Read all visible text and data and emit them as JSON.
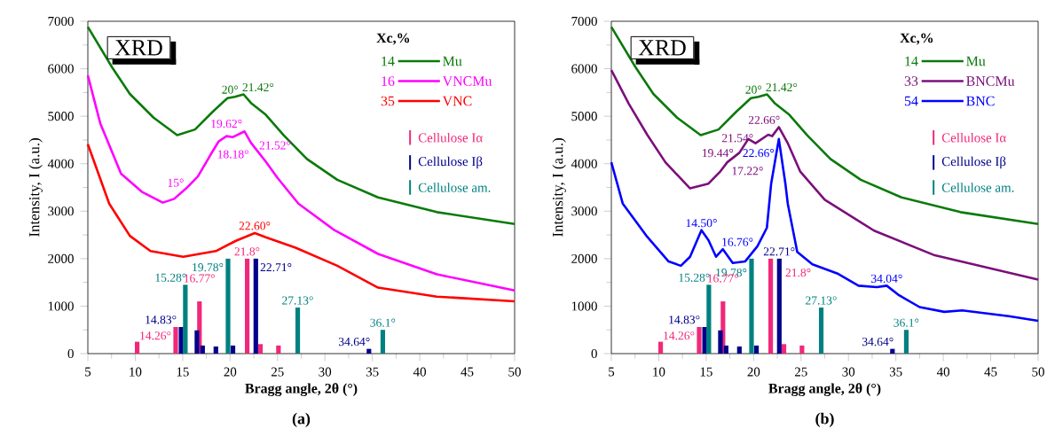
{
  "chart_data": [
    {
      "type": "line",
      "title": "XRD",
      "subtitle": "(a)",
      "xlabel": "Bragg angle, 2θ (°)",
      "ylabel": "Intensity, I (a.u.)",
      "legend_title": "Xc,%",
      "legend": "top right",
      "marker": "none",
      "line_style": "solid",
      "xlim": [
        5,
        50
      ],
      "ylim": [
        0,
        7000
      ],
      "xticks": [
        5,
        10,
        15,
        20,
        25,
        30,
        35,
        40,
        45,
        50
      ],
      "yticks": [
        0,
        1000,
        2000,
        3000,
        4000,
        5000,
        6000,
        7000
      ],
      "series": [
        {
          "name": "Mu",
          "color": "#0a7a0a",
          "x": [
            5,
            7.56,
            9.43,
            11.93,
            14.42,
            16.3,
            18.2,
            19.72,
            20.5,
            21.42,
            22.2,
            23.77,
            25.65,
            28.1,
            31.3,
            35.6,
            41.8,
            50
          ],
          "values": [
            6880,
            6030,
            5470,
            4970,
            4600,
            4720,
            5100,
            5380,
            5410,
            5460,
            5280,
            5030,
            4600,
            4100,
            3660,
            3290,
            2980,
            2730
          ]
        },
        {
          "name": "VNCMu",
          "color": "#ff00ff",
          "x": [
            5,
            6.31,
            8.5,
            10.68,
            12.9,
            14.1,
            15.37,
            16.6,
            17.86,
            18.18,
            18.8,
            19.62,
            20.3,
            21.52,
            22.2,
            23.77,
            25.0,
            27.2,
            31.0,
            35.6,
            41.8,
            50
          ],
          "values": [
            5860,
            4850,
            3790,
            3410,
            3180,
            3260,
            3480,
            3730,
            4160,
            4270,
            4470,
            4580,
            4560,
            4680,
            4440,
            4040,
            3700,
            3160,
            2600,
            2100,
            1670,
            1330
          ]
        },
        {
          "name": "VNC",
          "color": "#ff0000",
          "x": [
            5,
            7.25,
            9.43,
            11.6,
            15.05,
            18.5,
            20.66,
            22.6,
            23.77,
            26.9,
            31.3,
            35.6,
            41.8,
            50
          ],
          "values": [
            4410,
            3160,
            2480,
            2160,
            2040,
            2160,
            2380,
            2540,
            2450,
            2230,
            1850,
            1390,
            1200,
            1100
          ]
        },
        {
          "name": "Cellulose Iα",
          "type": "bar",
          "color": "#f0287a",
          "x": [
            10.2,
            14.26,
            16.77,
            21.8,
            23.2,
            25.1
          ],
          "values": [
            250,
            560,
            1100,
            2000,
            200,
            170
          ]
        },
        {
          "name": "Cellulose Iβ",
          "type": "bar",
          "color": "#00008b",
          "x": [
            14.83,
            16.5,
            17.1,
            18.5,
            20.3,
            22.71,
            34.64
          ],
          "values": [
            560,
            490,
            170,
            150,
            170,
            2000,
            100
          ]
        },
        {
          "name": "Cellulose am.",
          "type": "bar",
          "color": "#008080",
          "x": [
            15.28,
            19.78,
            27.13,
            36.1
          ],
          "values": [
            1450,
            2000,
            970,
            500
          ]
        }
      ],
      "annotations": [
        "14",
        "16",
        "35",
        {
          "text": "20°",
          "x": 20,
          "y": 5410
        },
        {
          "text": "21.42°",
          "x": 21.42,
          "y": 5460
        },
        {
          "text": "19.62°",
          "x": 19.62,
          "y": 4580
        },
        {
          "text": "21.52°",
          "x": 21.52,
          "y": 4680
        },
        {
          "text": "18.18°",
          "x": 18.18,
          "y": 4270
        },
        {
          "text": "15°",
          "x": 15,
          "y": 3450
        },
        {
          "text": "22.60°",
          "x": 22.6,
          "y": 2540
        },
        {
          "text": "19.78°",
          "x": 19.78,
          "y": 2000
        },
        {
          "text": "21.8°",
          "x": 21.8,
          "y": 2000
        },
        {
          "text": "22.71°",
          "x": 22.71,
          "y": 2000
        },
        {
          "text": "15.28°",
          "x": 15.28,
          "y": 1450
        },
        {
          "text": "16.77°",
          "x": 16.77,
          "y": 1100
        },
        {
          "text": "14.83°",
          "x": 14.83,
          "y": 560
        },
        {
          "text": "14.26°",
          "x": 14.26,
          "y": 560
        },
        {
          "text": "27.13°",
          "x": 27.13,
          "y": 970
        },
        {
          "text": "34.64°",
          "x": 34.64,
          "y": 100
        },
        {
          "text": "36.1°",
          "x": 36.1,
          "y": 500
        }
      ]
    },
    {
      "type": "line",
      "title": "XRD",
      "subtitle": "(b)",
      "xlabel": "Bragg angle, 2θ (°)",
      "ylabel": "Intensity, I (a.u.)",
      "legend_title": "Xc,%",
      "legend": "top right",
      "marker": "none",
      "line_style": "solid",
      "xlim": [
        5,
        50
      ],
      "ylim": [
        0,
        7000
      ],
      "xticks": [
        5,
        10,
        15,
        20,
        25,
        30,
        35,
        40,
        45,
        50
      ],
      "yticks": [
        0,
        1000,
        2000,
        3000,
        4000,
        5000,
        6000,
        7000
      ],
      "series": [
        {
          "name": "Mu",
          "color": "#0a7a0a",
          "x": [
            5,
            7.56,
            9.43,
            11.93,
            14.42,
            16.3,
            18.2,
            19.72,
            20.5,
            21.42,
            22.2,
            23.77,
            25.65,
            28.1,
            31.3,
            35.6,
            41.8,
            50
          ],
          "values": [
            6880,
            6030,
            5470,
            4970,
            4600,
            4720,
            5100,
            5380,
            5410,
            5460,
            5280,
            5030,
            4600,
            4100,
            3660,
            3290,
            2980,
            2730
          ]
        },
        {
          "name": "BNCMu",
          "color": "#7b0f7b",
          "x": [
            5,
            6.84,
            8.78,
            10.7,
            13.3,
            15.24,
            16.5,
            17.22,
            18.5,
            19.44,
            20.2,
            21.54,
            21.95,
            22.66,
            23.63,
            24.9,
            27.5,
            32.7,
            39.1,
            50
          ],
          "values": [
            5970,
            5260,
            4610,
            4030,
            3480,
            3580,
            3840,
            4030,
            4230,
            4520,
            4430,
            4610,
            4580,
            4770,
            4420,
            3840,
            3240,
            2590,
            2070,
            1560
          ]
        },
        {
          "name": "BNC",
          "color": "#0000ff",
          "x": [
            5,
            6.2,
            8.78,
            11.04,
            12.33,
            13.3,
            14.5,
            15.24,
            16.04,
            16.76,
            17.8,
            19.1,
            20.4,
            21.4,
            21.85,
            22.66,
            23.35,
            23.6,
            24.6,
            26.2,
            28.8,
            31.06,
            33.0,
            34.04,
            35.25,
            37.5,
            40.1,
            42,
            46.9,
            50
          ],
          "values": [
            4030,
            3160,
            2460,
            1940,
            1850,
            2040,
            2600,
            2390,
            2040,
            2200,
            1910,
            1940,
            2260,
            2650,
            3580,
            4520,
            3580,
            3160,
            2140,
            1880,
            1690,
            1430,
            1400,
            1430,
            1240,
            980,
            880,
            910,
            790,
            690
          ]
        },
        {
          "name": "Cellulose Iα",
          "type": "bar",
          "color": "#f0287a",
          "x": [
            10.2,
            14.26,
            16.77,
            21.8,
            23.2,
            25.1
          ],
          "values": [
            250,
            560,
            1100,
            2000,
            200,
            170
          ]
        },
        {
          "name": "Cellulose Iβ",
          "type": "bar",
          "color": "#00008b",
          "x": [
            14.83,
            16.5,
            17.1,
            18.5,
            20.3,
            22.71,
            34.64
          ],
          "values": [
            560,
            490,
            170,
            150,
            170,
            2000,
            100
          ]
        },
        {
          "name": "Cellulose am.",
          "type": "bar",
          "color": "#008080",
          "x": [
            15.28,
            19.78,
            27.13,
            36.1
          ],
          "values": [
            1450,
            2000,
            970,
            500
          ]
        }
      ],
      "annotations": [
        "14",
        "33",
        "54",
        {
          "text": "20°",
          "x": 20,
          "y": 5410
        },
        {
          "text": "21.42°",
          "x": 21.42,
          "y": 5460
        },
        {
          "text": "22.66°",
          "x": 22.66,
          "y": 4770
        },
        {
          "text": "21.54°",
          "x": 21.54,
          "y": 4610
        },
        {
          "text": "19.44°",
          "x": 19.44,
          "y": 4520
        },
        {
          "text": "17.22°",
          "x": 17.22,
          "y": 4030
        },
        {
          "text": "22.66°",
          "x": 22.66,
          "y": 4520
        },
        {
          "text": "14.50°",
          "x": 14.5,
          "y": 2600
        },
        {
          "text": "16.76°",
          "x": 16.76,
          "y": 2200
        },
        {
          "text": "34.04°",
          "x": 34.04,
          "y": 1430
        },
        {
          "text": "19.78°",
          "x": 19.78,
          "y": 2000
        },
        {
          "text": "21.8°",
          "x": 21.8,
          "y": 2000
        },
        {
          "text": "22.71°",
          "x": 22.71,
          "y": 2000
        },
        {
          "text": "15.28°",
          "x": 15.28,
          "y": 1450
        },
        {
          "text": "16.77°",
          "x": 16.77,
          "y": 1100
        },
        {
          "text": "14.83°",
          "x": 14.83,
          "y": 560
        },
        {
          "text": "14.26°",
          "x": 14.26,
          "y": 560
        },
        {
          "text": "27.13°",
          "x": 27.13,
          "y": 970
        },
        {
          "text": "34.64°",
          "x": 34.64,
          "y": 100
        },
        {
          "text": "36.1°",
          "x": 36.1,
          "y": 500
        }
      ]
    }
  ]
}
